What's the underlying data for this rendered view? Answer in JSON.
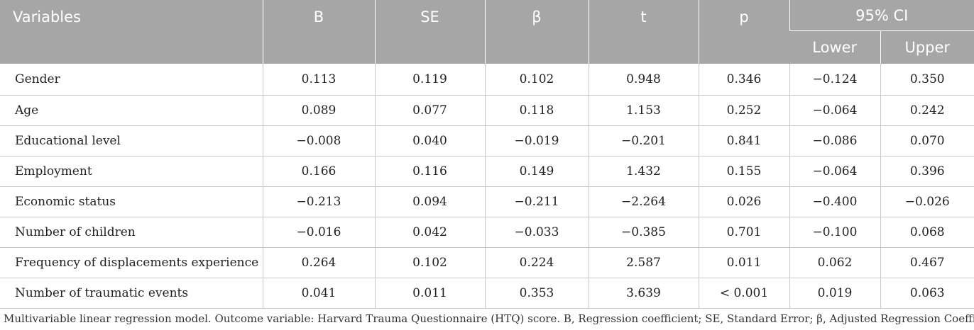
{
  "table": {
    "headers": {
      "variables": "Variables",
      "b": "B",
      "se": "SE",
      "beta": "β",
      "t": "t",
      "p": "p",
      "ci": "95% CI",
      "lower": "Lower",
      "upper": "Upper"
    },
    "rows": [
      {
        "variable": "Gender",
        "b": "0.113",
        "se": "0.119",
        "beta": "0.102",
        "t": "0.948",
        "p": "0.346",
        "lower": "−0.124",
        "upper": "0.350"
      },
      {
        "variable": "Age",
        "b": "0.089",
        "se": "0.077",
        "beta": "0.118",
        "t": "1.153",
        "p": "0.252",
        "lower": "−0.064",
        "upper": "0.242"
      },
      {
        "variable": "Educational level",
        "b": "−0.008",
        "se": "0.040",
        "beta": "−0.019",
        "t": "−0.201",
        "p": "0.841",
        "lower": "−0.086",
        "upper": "0.070"
      },
      {
        "variable": "Employment",
        "b": "0.166",
        "se": "0.116",
        "beta": "0.149",
        "t": "1.432",
        "p": "0.155",
        "lower": "−0.064",
        "upper": "0.396"
      },
      {
        "variable": "Economic status",
        "b": "−0.213",
        "se": "0.094",
        "beta": "−0.211",
        "t": "−2.264",
        "p": "0.026",
        "lower": "−0.400",
        "upper": "−0.026"
      },
      {
        "variable": "Number of children",
        "b": "−0.016",
        "se": "0.042",
        "beta": "−0.033",
        "t": "−0.385",
        "p": "0.701",
        "lower": "−0.100",
        "upper": "0.068"
      },
      {
        "variable": "Frequency of displacements experience",
        "b": "0.264",
        "se": "0.102",
        "beta": "0.224",
        "t": "2.587",
        "p": "0.011",
        "lower": "0.062",
        "upper": "0.467"
      },
      {
        "variable": "Number of traumatic events",
        "b": "0.041",
        "se": "0.011",
        "beta": "0.353",
        "t": "3.639",
        "p": "< 0.001",
        "lower": "0.019",
        "upper": "0.063"
      }
    ],
    "footnote": "Multivariable linear regression model. Outcome variable: Harvard Trauma Questionnaire (HTQ) score. B, Regression coefficient; SE, Standard Error; β, Adjusted Regression Coefficient."
  }
}
